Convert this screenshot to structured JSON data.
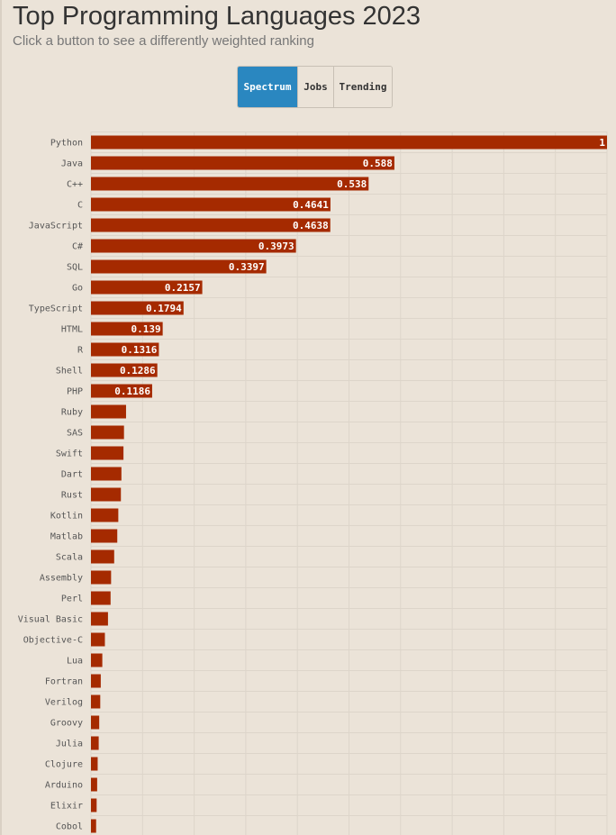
{
  "header": {
    "title": "Top Programming Languages 2023",
    "subtitle": "Click a button to see a differently weighted ranking"
  },
  "buttons": [
    {
      "label": "Spectrum",
      "active": true
    },
    {
      "label": "Jobs",
      "active": false
    },
    {
      "label": "Trending",
      "active": false
    }
  ],
  "colors": {
    "bar": "#a52a00",
    "active_button": "#2a87c0",
    "background": "#ebe3d8",
    "grid": "#ddd5ca"
  },
  "chart_data": {
    "type": "bar",
    "orientation": "horizontal",
    "title": "Top Programming Languages 2023",
    "subtitle": "Click a button to see a differently weighted ranking",
    "xlim": [
      0,
      1
    ],
    "grid": true,
    "categories": [
      "Python",
      "Java",
      "C++",
      "C",
      "JavaScript",
      "C#",
      "SQL",
      "Go",
      "TypeScript",
      "HTML",
      "R",
      "Shell",
      "PHP",
      "Ruby",
      "SAS",
      "Swift",
      "Dart",
      "Rust",
      "Kotlin",
      "Matlab",
      "Scala",
      "Assembly",
      "Perl",
      "Visual Basic",
      "Objective-C",
      "Lua",
      "Fortran",
      "Verilog",
      "Groovy",
      "Julia",
      "Clojure",
      "Arduino",
      "Elixir",
      "Cobol"
    ],
    "values": [
      1,
      0.588,
      0.538,
      0.4641,
      0.4638,
      0.3973,
      0.3397,
      0.2157,
      0.1794,
      0.139,
      0.1316,
      0.1286,
      0.1186,
      0.068,
      0.064,
      0.063,
      0.059,
      0.058,
      0.053,
      0.051,
      0.045,
      0.039,
      0.038,
      0.033,
      0.027,
      0.022,
      0.019,
      0.018,
      0.016,
      0.015,
      0.013,
      0.012,
      0.011,
      0.01
    ],
    "value_labels": [
      "1",
      "0.588",
      "0.538",
      "0.4641",
      "0.4638",
      "0.3973",
      "0.3397",
      "0.2157",
      "0.1794",
      "0.139",
      "0.1316",
      "0.1286",
      "0.1186",
      "",
      "",
      "",
      "",
      "",
      "",
      "",
      "",
      "",
      "",
      "",
      "",
      "",
      "",
      "",
      "",
      "",
      "",
      "",
      "",
      ""
    ]
  }
}
